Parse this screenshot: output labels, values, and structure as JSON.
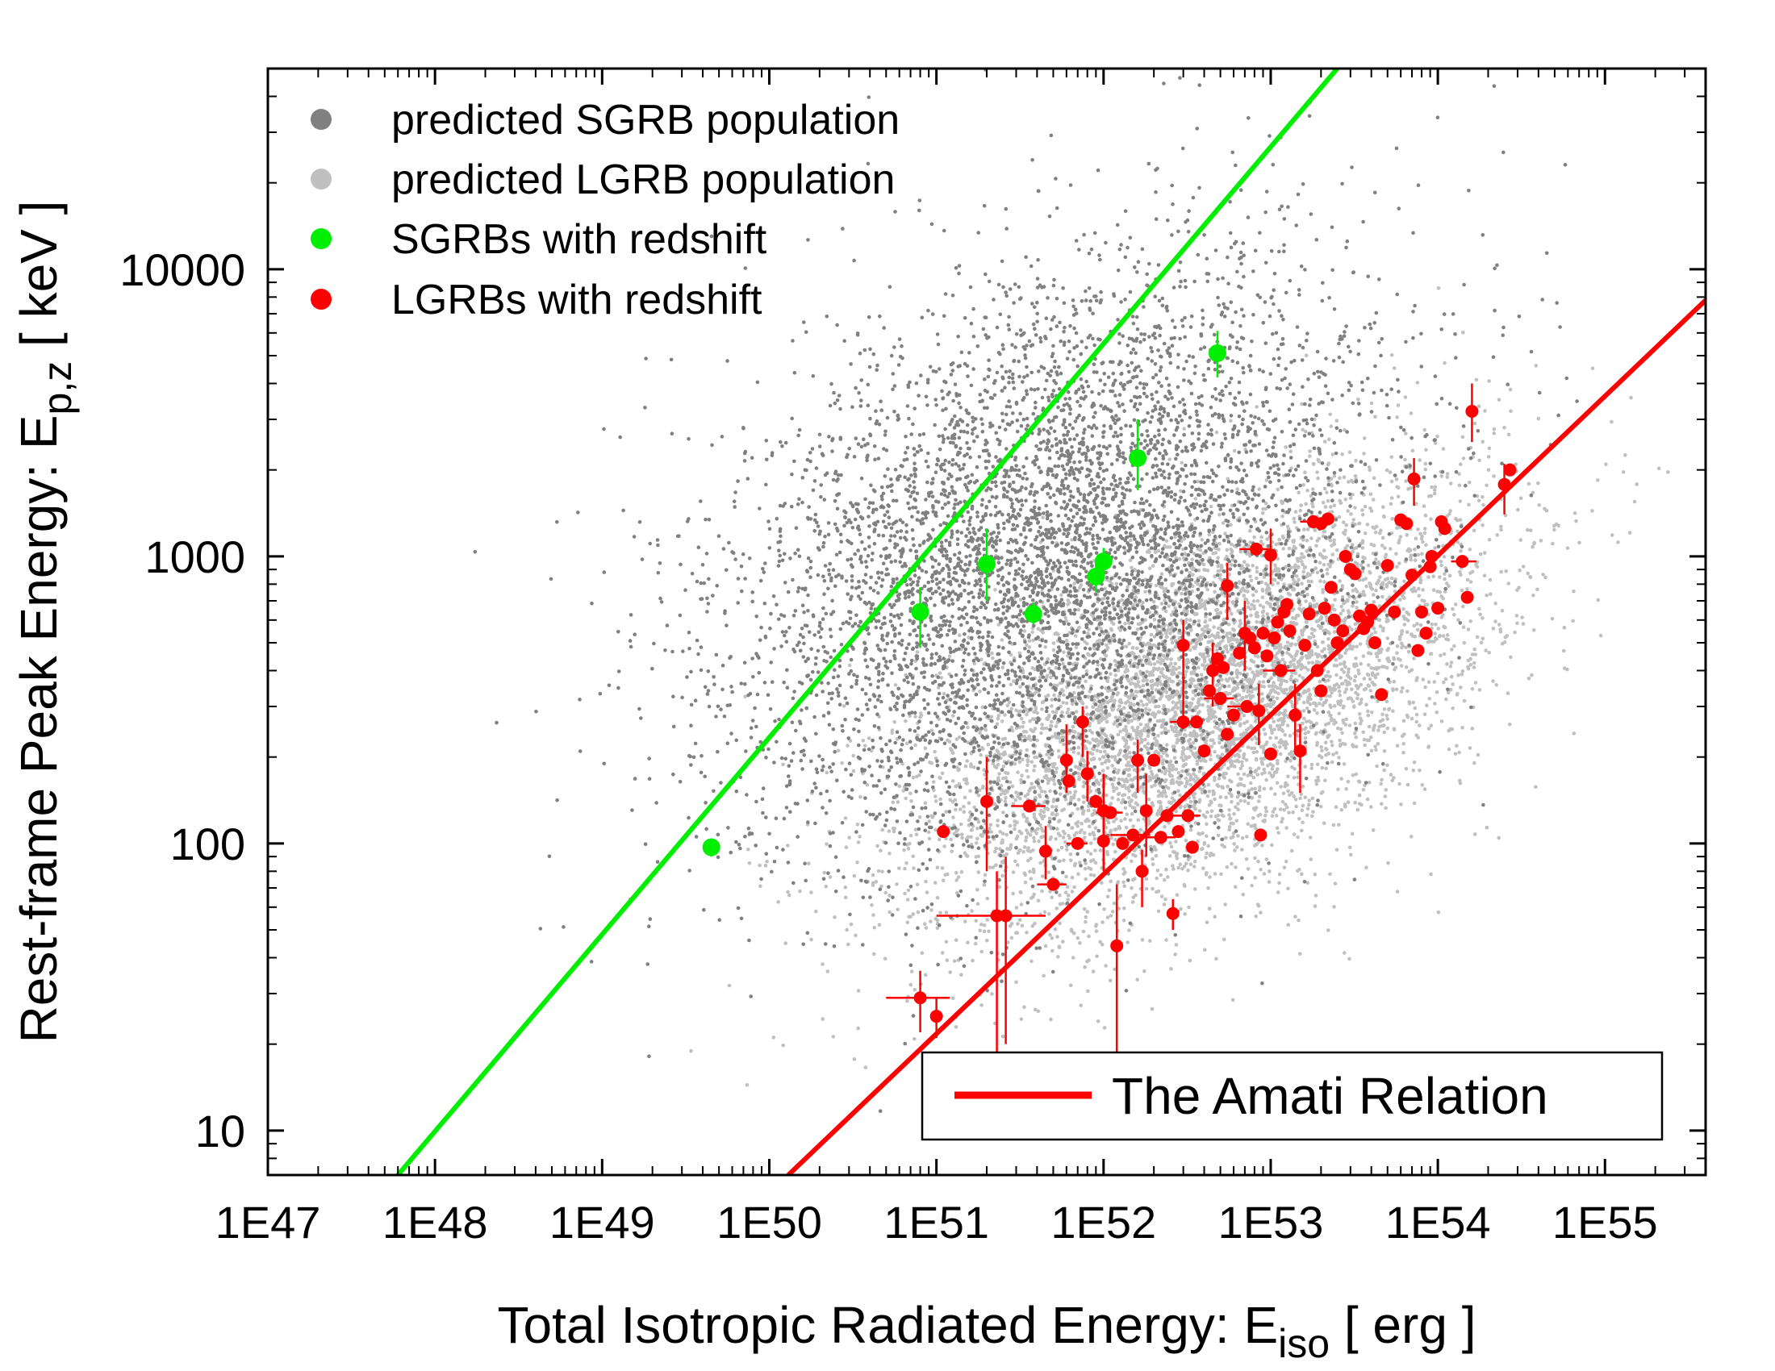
{
  "chart_data": {
    "type": "scatter",
    "x_scale": "log",
    "y_scale": "log",
    "xlim": [
      1e+47,
      4e+55
    ],
    "ylim": [
      7,
      50000
    ],
    "x_ticks": [
      {
        "value": 1e+47,
        "label": "1E47"
      },
      {
        "value": 1e+48,
        "label": "1E48"
      },
      {
        "value": 1e+49,
        "label": "1E49"
      },
      {
        "value": 1e+50,
        "label": "1E50"
      },
      {
        "value": 1e+51,
        "label": "1E51"
      },
      {
        "value": 1e+52,
        "label": "1E52"
      },
      {
        "value": 1e+53,
        "label": "1E53"
      },
      {
        "value": 1e+54,
        "label": "1E54"
      },
      {
        "value": 1e+55,
        "label": "1E55"
      }
    ],
    "y_ticks": [
      {
        "value": 10,
        "label": "10"
      },
      {
        "value": 100,
        "label": "100"
      },
      {
        "value": 1000,
        "label": "1000"
      },
      {
        "value": 10000,
        "label": "10000"
      }
    ],
    "xlabel": {
      "main": "Total Isotropic Radiated Energy:  E",
      "sub": "iso",
      "unit": "  [ erg ]"
    },
    "ylabel": {
      "main": "Rest-frame Peak Energy:  E",
      "sub": "p,z",
      "unit": "  [ keV ]"
    },
    "legend": {
      "position": "top-left",
      "entries": [
        {
          "label": "predicted SGRB population",
          "color": "#808080"
        },
        {
          "label": "predicted LGRB population",
          "color": "#c0c0c0"
        },
        {
          "label": "SGRBs with redshift",
          "color": "#00ee00"
        },
        {
          "label": "LGRBs with redshift",
          "color": "#ff0000"
        }
      ]
    },
    "relation_legend": {
      "position": "bottom-right",
      "label": "The Amati Relation",
      "color": "#ff0000"
    },
    "populations": [
      {
        "name": "predicted SGRB population",
        "color": "#808080",
        "count": 6000,
        "center_log_x": 51.7,
        "center_log_y": 3.0,
        "sigma_log_x": 0.95,
        "sigma_log_y": 0.5,
        "correlation": 0.35
      },
      {
        "name": "predicted LGRB population",
        "color": "#c0c0c0",
        "count": 6000,
        "center_log_x": 52.6,
        "center_log_y": 2.5,
        "sigma_log_x": 0.85,
        "sigma_log_y": 0.38,
        "correlation": 0.55
      }
    ],
    "lines": [
      {
        "name": "SGRB relation",
        "color": "#00ee00",
        "points": [
          [
            6e+47,
            7
          ],
          [
            2.5e+53,
            50000
          ]
        ]
      },
      {
        "name": "The Amati Relation",
        "color": "#ff0000",
        "points": [
          [
            1.3e+50,
            7
          ],
          [
            4e+55,
            7800
          ]
        ]
      }
    ],
    "series": [
      {
        "name": "SGRBs with redshift",
        "color": "#00ee00",
        "points": [
          {
            "x": 4.5e+49,
            "y": 97,
            "ylo": 90,
            "yhi": 104
          },
          {
            "x": 8e+50,
            "y": 640,
            "ylo": 480,
            "yhi": 780
          },
          {
            "x": 2e+51,
            "y": 940,
            "ylo": 700,
            "yhi": 1250
          },
          {
            "x": 3.8e+51,
            "y": 630,
            "ylo": 580,
            "yhi": 690
          },
          {
            "x": 9e+51,
            "y": 850,
            "ylo": 750,
            "yhi": 950
          },
          {
            "x": 1e+52,
            "y": 960,
            "ylo": 850,
            "yhi": 1070
          },
          {
            "x": 1.6e+52,
            "y": 2200,
            "ylo": 1700,
            "yhi": 3000
          },
          {
            "x": 4.8e+52,
            "y": 5100,
            "ylo": 4200,
            "yhi": 6100
          }
        ]
      },
      {
        "name": "LGRBs with redshift",
        "color": "#ff0000",
        "points": [
          {
            "x": 8e+50,
            "y": 29,
            "xlo": 5e+50,
            "xhi": 1.2e+51,
            "ylo": 22,
            "yhi": 36
          },
          {
            "x": 1e+51,
            "y": 25,
            "ylo": 21,
            "yhi": 29
          },
          {
            "x": 1.1e+51,
            "y": 110
          },
          {
            "x": 2e+51,
            "y": 140,
            "ylo": 80,
            "yhi": 200
          },
          {
            "x": 2.3e+51,
            "y": 56,
            "xlo": 1e+51,
            "xhi": 4.5e+51,
            "ylo": 18,
            "yhi": 80
          },
          {
            "x": 2.6e+51,
            "y": 56,
            "ylo": 20,
            "yhi": 90
          },
          {
            "x": 3.6e+51,
            "y": 135,
            "xlo": 2.8e+51,
            "xhi": 4.5e+51
          },
          {
            "x": 4.5e+51,
            "y": 94,
            "ylo": 75,
            "yhi": 115
          },
          {
            "x": 5e+51,
            "y": 72,
            "xlo": 4e+51,
            "xhi": 6e+51
          },
          {
            "x": 6e+51,
            "y": 195,
            "ylo": 150,
            "yhi": 260
          },
          {
            "x": 6.2e+51,
            "y": 165
          },
          {
            "x": 7e+51,
            "y": 100,
            "xlo": 6e+51,
            "xhi": 8e+51
          },
          {
            "x": 7.5e+51,
            "y": 265,
            "ylo": 200,
            "yhi": 300
          },
          {
            "x": 8e+51,
            "y": 175,
            "ylo": 140,
            "yhi": 210
          },
          {
            "x": 9e+51,
            "y": 140
          },
          {
            "x": 1e+52,
            "y": 130,
            "ylo": 90,
            "yhi": 175
          },
          {
            "x": 1e+52,
            "y": 102,
            "ylo": 80,
            "yhi": 125
          },
          {
            "x": 1.1e+52,
            "y": 128,
            "xlo": 9e+51,
            "xhi": 1.3e+52
          },
          {
            "x": 1.2e+52,
            "y": 44,
            "ylo": 18,
            "yhi": 72
          },
          {
            "x": 1.3e+52,
            "y": 100
          },
          {
            "x": 1.5e+52,
            "y": 107,
            "xlo": 1.1e+52,
            "xhi": 1.9e+52
          },
          {
            "x": 1.6e+52,
            "y": 195,
            "ylo": 150,
            "yhi": 230
          },
          {
            "x": 1.7e+52,
            "y": 80,
            "ylo": 60,
            "yhi": 95
          },
          {
            "x": 1.8e+52,
            "y": 130,
            "ylo": 90,
            "yhi": 175
          },
          {
            "x": 2e+52,
            "y": 195
          },
          {
            "x": 2.2e+52,
            "y": 105,
            "xlo": 1.7e+52,
            "xhi": 2.7e+52
          },
          {
            "x": 2.4e+52,
            "y": 125
          },
          {
            "x": 2.6e+52,
            "y": 57,
            "ylo": 50,
            "yhi": 64
          },
          {
            "x": 2.8e+52,
            "y": 110
          },
          {
            "x": 3e+52,
            "y": 490,
            "ylo": 250,
            "yhi": 600
          },
          {
            "x": 3e+52,
            "y": 265,
            "xlo": 2.5e+52,
            "xhi": 3.6e+52
          },
          {
            "x": 3.2e+52,
            "y": 125,
            "xlo": 2.6e+52,
            "xhi": 3.8e+52
          },
          {
            "x": 3.4e+52,
            "y": 97
          },
          {
            "x": 3.6e+52,
            "y": 265
          },
          {
            "x": 4e+52,
            "y": 210
          },
          {
            "x": 4.3e+52,
            "y": 340
          },
          {
            "x": 4.5e+52,
            "y": 400,
            "ylo": 300,
            "yhi": 500
          },
          {
            "x": 4.8e+52,
            "y": 440
          },
          {
            "x": 5e+52,
            "y": 320,
            "xlo": 4e+52,
            "xhi": 6e+52
          },
          {
            "x": 5.2e+52,
            "y": 410
          },
          {
            "x": 5.5e+52,
            "y": 240
          },
          {
            "x": 5.5e+52,
            "y": 790,
            "ylo": 600,
            "yhi": 950
          },
          {
            "x": 6e+52,
            "y": 280
          },
          {
            "x": 6.5e+52,
            "y": 460
          },
          {
            "x": 7e+52,
            "y": 540,
            "ylo": 400,
            "yhi": 700
          },
          {
            "x": 7.2e+52,
            "y": 300,
            "xlo": 5.5e+52,
            "xhi": 9e+52
          },
          {
            "x": 7.5e+52,
            "y": 520
          },
          {
            "x": 8e+52,
            "y": 480
          },
          {
            "x": 8.2e+52,
            "y": 1060,
            "xlo": 6.5e+52,
            "xhi": 1e+53
          },
          {
            "x": 8.5e+52,
            "y": 290,
            "ylo": 220,
            "yhi": 360
          },
          {
            "x": 8.7e+52,
            "y": 107
          },
          {
            "x": 9e+52,
            "y": 540
          },
          {
            "x": 9.5e+52,
            "y": 450
          },
          {
            "x": 1e+53,
            "y": 1010,
            "ylo": 800,
            "yhi": 1250
          },
          {
            "x": 1e+53,
            "y": 205
          },
          {
            "x": 1.05e+53,
            "y": 520
          },
          {
            "x": 1.1e+53,
            "y": 590
          },
          {
            "x": 1.15e+53,
            "y": 400,
            "xlo": 9e+52,
            "xhi": 1.4e+53
          },
          {
            "x": 1.2e+53,
            "y": 640
          },
          {
            "x": 1.25e+53,
            "y": 680
          },
          {
            "x": 1.3e+53,
            "y": 550
          },
          {
            "x": 1.4e+53,
            "y": 280,
            "ylo": 210,
            "yhi": 360
          },
          {
            "x": 1.5e+53,
            "y": 210,
            "ylo": 150,
            "yhi": 260
          },
          {
            "x": 1.6e+53,
            "y": 490
          },
          {
            "x": 1.7e+53,
            "y": 630
          },
          {
            "x": 1.8e+53,
            "y": 1320,
            "xlo": 1.5e+53,
            "xhi": 2.1e+53
          },
          {
            "x": 1.9e+53,
            "y": 400
          },
          {
            "x": 2e+53,
            "y": 1300
          },
          {
            "x": 2e+53,
            "y": 340
          },
          {
            "x": 2.1e+53,
            "y": 660
          },
          {
            "x": 2.2e+53,
            "y": 1350
          },
          {
            "x": 2.3e+53,
            "y": 780
          },
          {
            "x": 2.4e+53,
            "y": 600
          },
          {
            "x": 2.5e+53,
            "y": 500
          },
          {
            "x": 2.7e+53,
            "y": 550
          },
          {
            "x": 2.8e+53,
            "y": 1000
          },
          {
            "x": 3e+53,
            "y": 900
          },
          {
            "x": 3.2e+53,
            "y": 870
          },
          {
            "x": 3.4e+53,
            "y": 620
          },
          {
            "x": 3.6e+53,
            "y": 560
          },
          {
            "x": 3.8e+53,
            "y": 590
          },
          {
            "x": 4e+53,
            "y": 650
          },
          {
            "x": 4.2e+53,
            "y": 500
          },
          {
            "x": 4.6e+53,
            "y": 330
          },
          {
            "x": 5e+53,
            "y": 930
          },
          {
            "x": 5.5e+53,
            "y": 640
          },
          {
            "x": 6e+53,
            "y": 1340
          },
          {
            "x": 6.5e+53,
            "y": 1300
          },
          {
            "x": 7e+53,
            "y": 860
          },
          {
            "x": 7.2e+53,
            "y": 1860,
            "ylo": 1500,
            "yhi": 2200
          },
          {
            "x": 7.6e+53,
            "y": 470
          },
          {
            "x": 8e+53,
            "y": 640
          },
          {
            "x": 8.5e+53,
            "y": 540
          },
          {
            "x": 9e+53,
            "y": 920
          },
          {
            "x": 9.2e+53,
            "y": 1000
          },
          {
            "x": 1e+54,
            "y": 660
          },
          {
            "x": 1.05e+54,
            "y": 1320
          },
          {
            "x": 1.1e+54,
            "y": 1250
          },
          {
            "x": 1.4e+54,
            "y": 960,
            "xlo": 1.2e+54,
            "xhi": 1.7e+54
          },
          {
            "x": 1.5e+54,
            "y": 720
          },
          {
            "x": 1.6e+54,
            "y": 3200,
            "ylo": 2500,
            "yhi": 4000
          },
          {
            "x": 2.5e+54,
            "y": 1780,
            "ylo": 1400,
            "yhi": 2100
          },
          {
            "x": 2.7e+54,
            "y": 2000
          }
        ]
      }
    ]
  }
}
